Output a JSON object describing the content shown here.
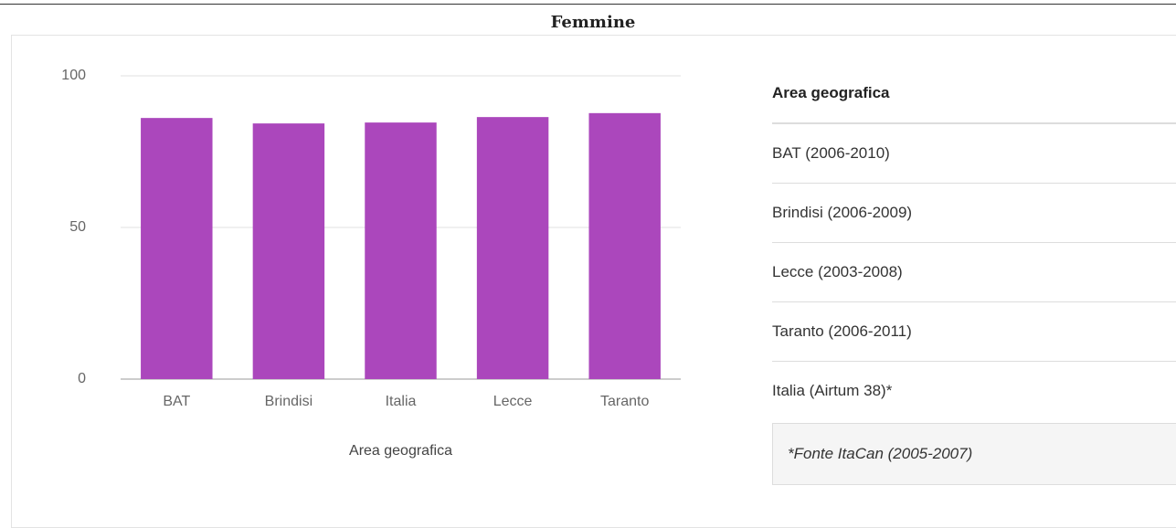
{
  "chart_data": {
    "type": "bar",
    "title": "Femmine",
    "x_label": "Area geografica",
    "categories": [
      "BAT",
      "Brindisi",
      "Italia",
      "Lecce",
      "Taranto"
    ],
    "values": [
      86.1,
      84.3,
      84.6,
      86.4,
      87.7
    ],
    "color": "#ab47bc",
    "ylim": [
      0,
      100
    ],
    "yticks": [
      0,
      50,
      100
    ],
    "grid": true
  },
  "table": {
    "header": "Area geografica",
    "rows": [
      "BAT (2006-2010)",
      "Brindisi (2006-2009)",
      "Lecce (2003-2008)",
      "Taranto (2006-2011)",
      "Italia (Airtum 38)*"
    ]
  },
  "footnote": "*Fonte ItaCan (2005-2007)"
}
